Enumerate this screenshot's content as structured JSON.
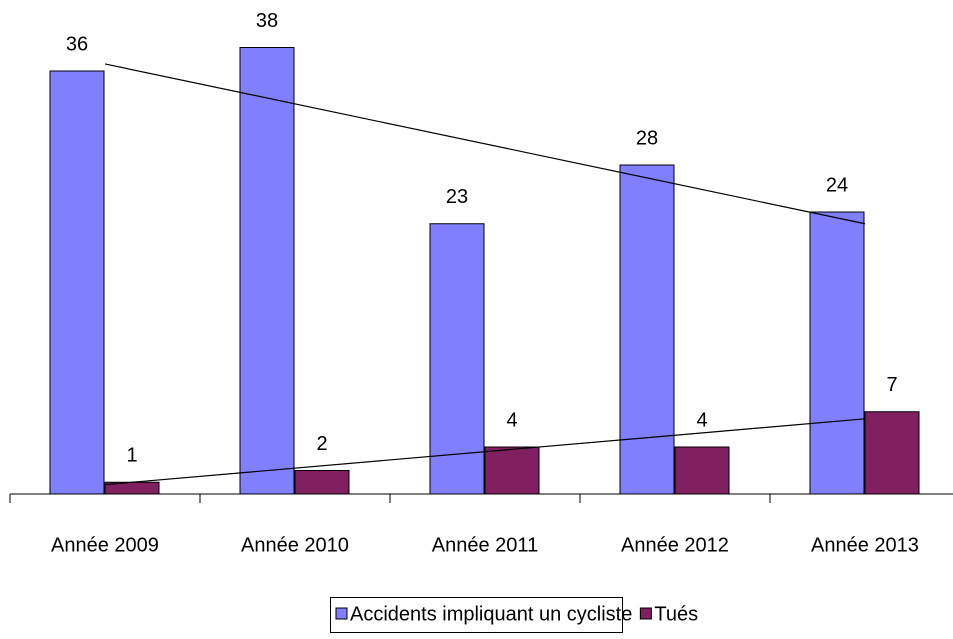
{
  "chart_data": {
    "type": "bar",
    "categories": [
      "Année 2009",
      "Année 2010",
      "Année 2011",
      "Année 2012",
      "Année 2013"
    ],
    "series": [
      {
        "name": "Accidents impliquant un cycliste",
        "color": "#8080ff",
        "values": [
          36,
          38,
          23,
          28,
          24
        ]
      },
      {
        "name": "Tués",
        "color": "#802060",
        "values": [
          1,
          2,
          4,
          4,
          7
        ]
      }
    ],
    "trendline": true,
    "legend": "bottom"
  }
}
